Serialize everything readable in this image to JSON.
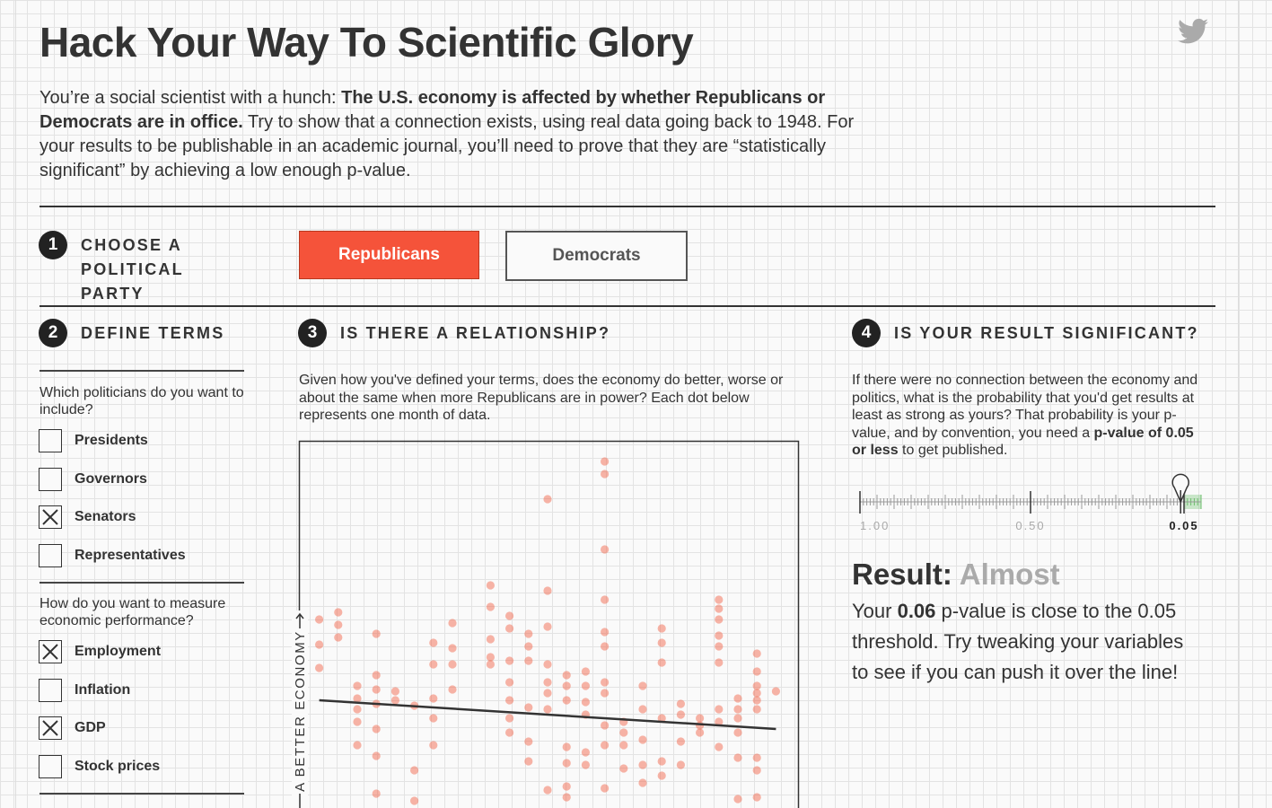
{
  "header": {
    "title": "Hack Your Way To Scientific Glory"
  },
  "intro": {
    "lead": "You’re a social scientist with a hunch: ",
    "claim": "The U.S. economy is affected by whether Republicans or Democrats are in office.",
    "rest": " Try to show that a connection exists, using real data going back to 1948. For your results to be publishable in an academic journal, you’ll need to prove that they are “statistically significant” by achieving a low enough p-value."
  },
  "steps": [
    {
      "number": "1",
      "label": "CHOOSE A POLITICAL PARTY",
      "options": [
        {
          "label": "Republicans",
          "selected": true
        },
        {
          "label": "Democrats",
          "selected": false
        }
      ]
    },
    {
      "number": "2",
      "label": "DEFINE TERMS",
      "questions": [
        {
          "prompt": "Which politicians do you want to include?",
          "options": [
            {
              "label": "Presidents",
              "checked": false
            },
            {
              "label": "Governors",
              "checked": false
            },
            {
              "label": "Senators",
              "checked": true
            },
            {
              "label": "Representatives",
              "checked": false
            }
          ]
        },
        {
          "prompt": "How do you want to measure economic performance?",
          "options": [
            {
              "label": "Employment",
              "checked": true
            },
            {
              "label": "Inflation",
              "checked": false
            },
            {
              "label": "GDP",
              "checked": true
            },
            {
              "label": "Stock prices",
              "checked": false
            }
          ]
        }
      ]
    },
    {
      "number": "3",
      "label": "IS THERE A RELATIONSHIP?",
      "description": "Given how you've defined your terms, does the economy do better, worse or about the same when more Republicans are in power? Each dot below represents one month of data."
    },
    {
      "number": "4",
      "label": "IS YOUR RESULT SIGNIFICANT?",
      "description": {
        "lead": "If there were no connection between the economy and politics, what is the probability that you'd get results at least as strong as yours? That probability is your p-value, and by convention, you need a ",
        "emphasis": "p-value of 0.05 or less",
        "rest": " to get published."
      },
      "result": {
        "label": "Result:",
        "verdict": "Almost",
        "lead": "Your ",
        "rest": " p-value is close to the 0.05 threshold. Try tweaking your variables to see if you can push it over the line!"
      }
    }
  ],
  "chart_data": [
    {
      "type": "scatter",
      "y_label": "A BETTER ECONOMY",
      "color": "#f26a4f",
      "xlim": [
        0,
        100
      ],
      "ylim": [
        0,
        100
      ],
      "x": [
        2,
        2,
        2,
        6,
        6,
        6,
        10,
        10,
        10,
        10,
        10,
        14,
        14,
        14,
        14,
        14,
        14,
        14,
        18,
        18,
        22,
        22,
        22,
        26,
        26,
        26,
        26,
        26,
        30,
        30,
        30,
        30,
        38,
        38,
        38,
        38,
        38,
        42,
        42,
        42,
        42,
        42,
        42,
        42,
        46,
        46,
        46,
        46,
        46,
        46,
        50,
        50,
        50,
        50,
        50,
        50,
        50,
        50,
        54,
        54,
        54,
        54,
        54,
        54,
        54,
        58,
        58,
        58,
        58,
        58,
        58,
        62,
        62,
        62,
        62,
        62,
        62,
        62,
        62,
        62,
        62,
        62,
        66,
        66,
        66,
        66,
        70,
        70,
        70,
        70,
        70,
        74,
        74,
        74,
        74,
        74,
        74,
        78,
        78,
        78,
        78,
        82,
        82,
        82,
        86,
        86,
        86,
        86,
        86,
        86,
        86,
        86,
        86,
        90,
        90,
        90,
        90,
        90,
        90,
        94,
        94,
        94,
        94,
        94,
        94,
        94,
        94,
        94,
        98
      ],
      "y": [
        52.5,
        45.5,
        39,
        54.5,
        51,
        47.5,
        34,
        30.5,
        27.5,
        24,
        17.5,
        48.5,
        37,
        33,
        29,
        22,
        14.5,
        4,
        32.5,
        30,
        28.5,
        10.5,
        2,
        46,
        40,
        30.5,
        25,
        17.5,
        51.5,
        44.5,
        40,
        33,
        62,
        56,
        47,
        42,
        40,
        53.5,
        50,
        41,
        35,
        30,
        25,
        21,
        48.5,
        45,
        41,
        28,
        18.5,
        13,
        86,
        60.5,
        50.5,
        40,
        35,
        32,
        27.5,
        5,
        37,
        34,
        30,
        17,
        12.5,
        6,
        3,
        38,
        34,
        29.5,
        26,
        15.5,
        12,
        96.5,
        93,
        72,
        58,
        49,
        45,
        35,
        32,
        23,
        17.5,
        5.5,
        24,
        21,
        17.5,
        11,
        34,
        27.5,
        19,
        12,
        7,
        50,
        46,
        40.5,
        25,
        13,
        9,
        29,
        26,
        18.5,
        12,
        25,
        23,
        21,
        58,
        55.5,
        52.5,
        48,
        45,
        40.5,
        27.5,
        24,
        17,
        30.5,
        27.5,
        25,
        21,
        14,
        2.5,
        43,
        38,
        34,
        32,
        30,
        27.5,
        14,
        10.5,
        3,
        32.5
      ],
      "trend": {
        "x": [
          2,
          98
        ],
        "y": [
          30,
          22
        ],
        "color": "#333333"
      }
    },
    {
      "type": "gauge",
      "xlim": [
        1,
        0
      ],
      "xticks": [
        {
          "value": 1,
          "label": "1.00"
        },
        {
          "value": 0.5,
          "label": "0.50"
        },
        {
          "value": 0.05,
          "label": "0.05"
        }
      ],
      "value": 0.06,
      "threshold": 0.05,
      "threshold_color": "#6cbf6c"
    }
  ]
}
